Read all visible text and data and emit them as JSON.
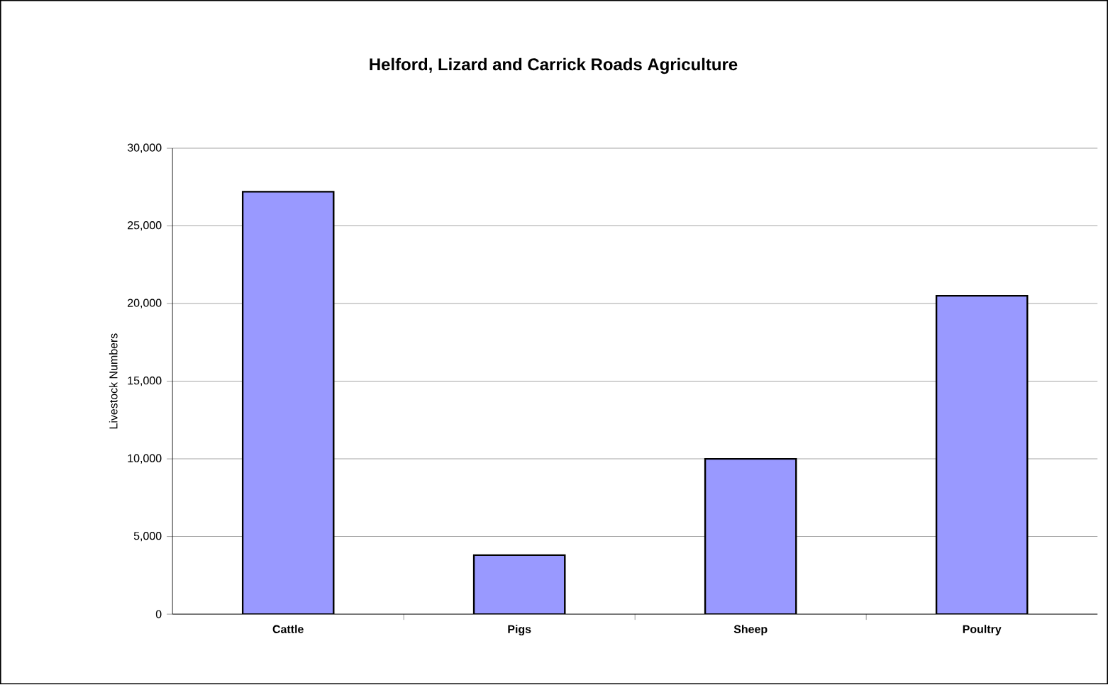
{
  "chart_data": {
    "type": "bar",
    "title": "Helford, Lizard and Carrick Roads Agriculture",
    "ylabel": "Livestock Numbers",
    "categories": [
      "Cattle",
      "Pigs",
      "Sheep",
      "Poultry"
    ],
    "values": [
      27200,
      3800,
      10000,
      20500
    ],
    "color": "#9999ff",
    "ylim": [
      0,
      30000
    ],
    "yticks": [
      {
        "value": 0,
        "label": "0"
      },
      {
        "value": 5000,
        "label": "5,000"
      },
      {
        "value": 10000,
        "label": "10,000"
      },
      {
        "value": 15000,
        "label": "15,000"
      },
      {
        "value": 20000,
        "label": "20,000"
      },
      {
        "value": 25000,
        "label": "25,000"
      },
      {
        "value": 30000,
        "label": "30,000"
      }
    ],
    "grid": "y"
  }
}
